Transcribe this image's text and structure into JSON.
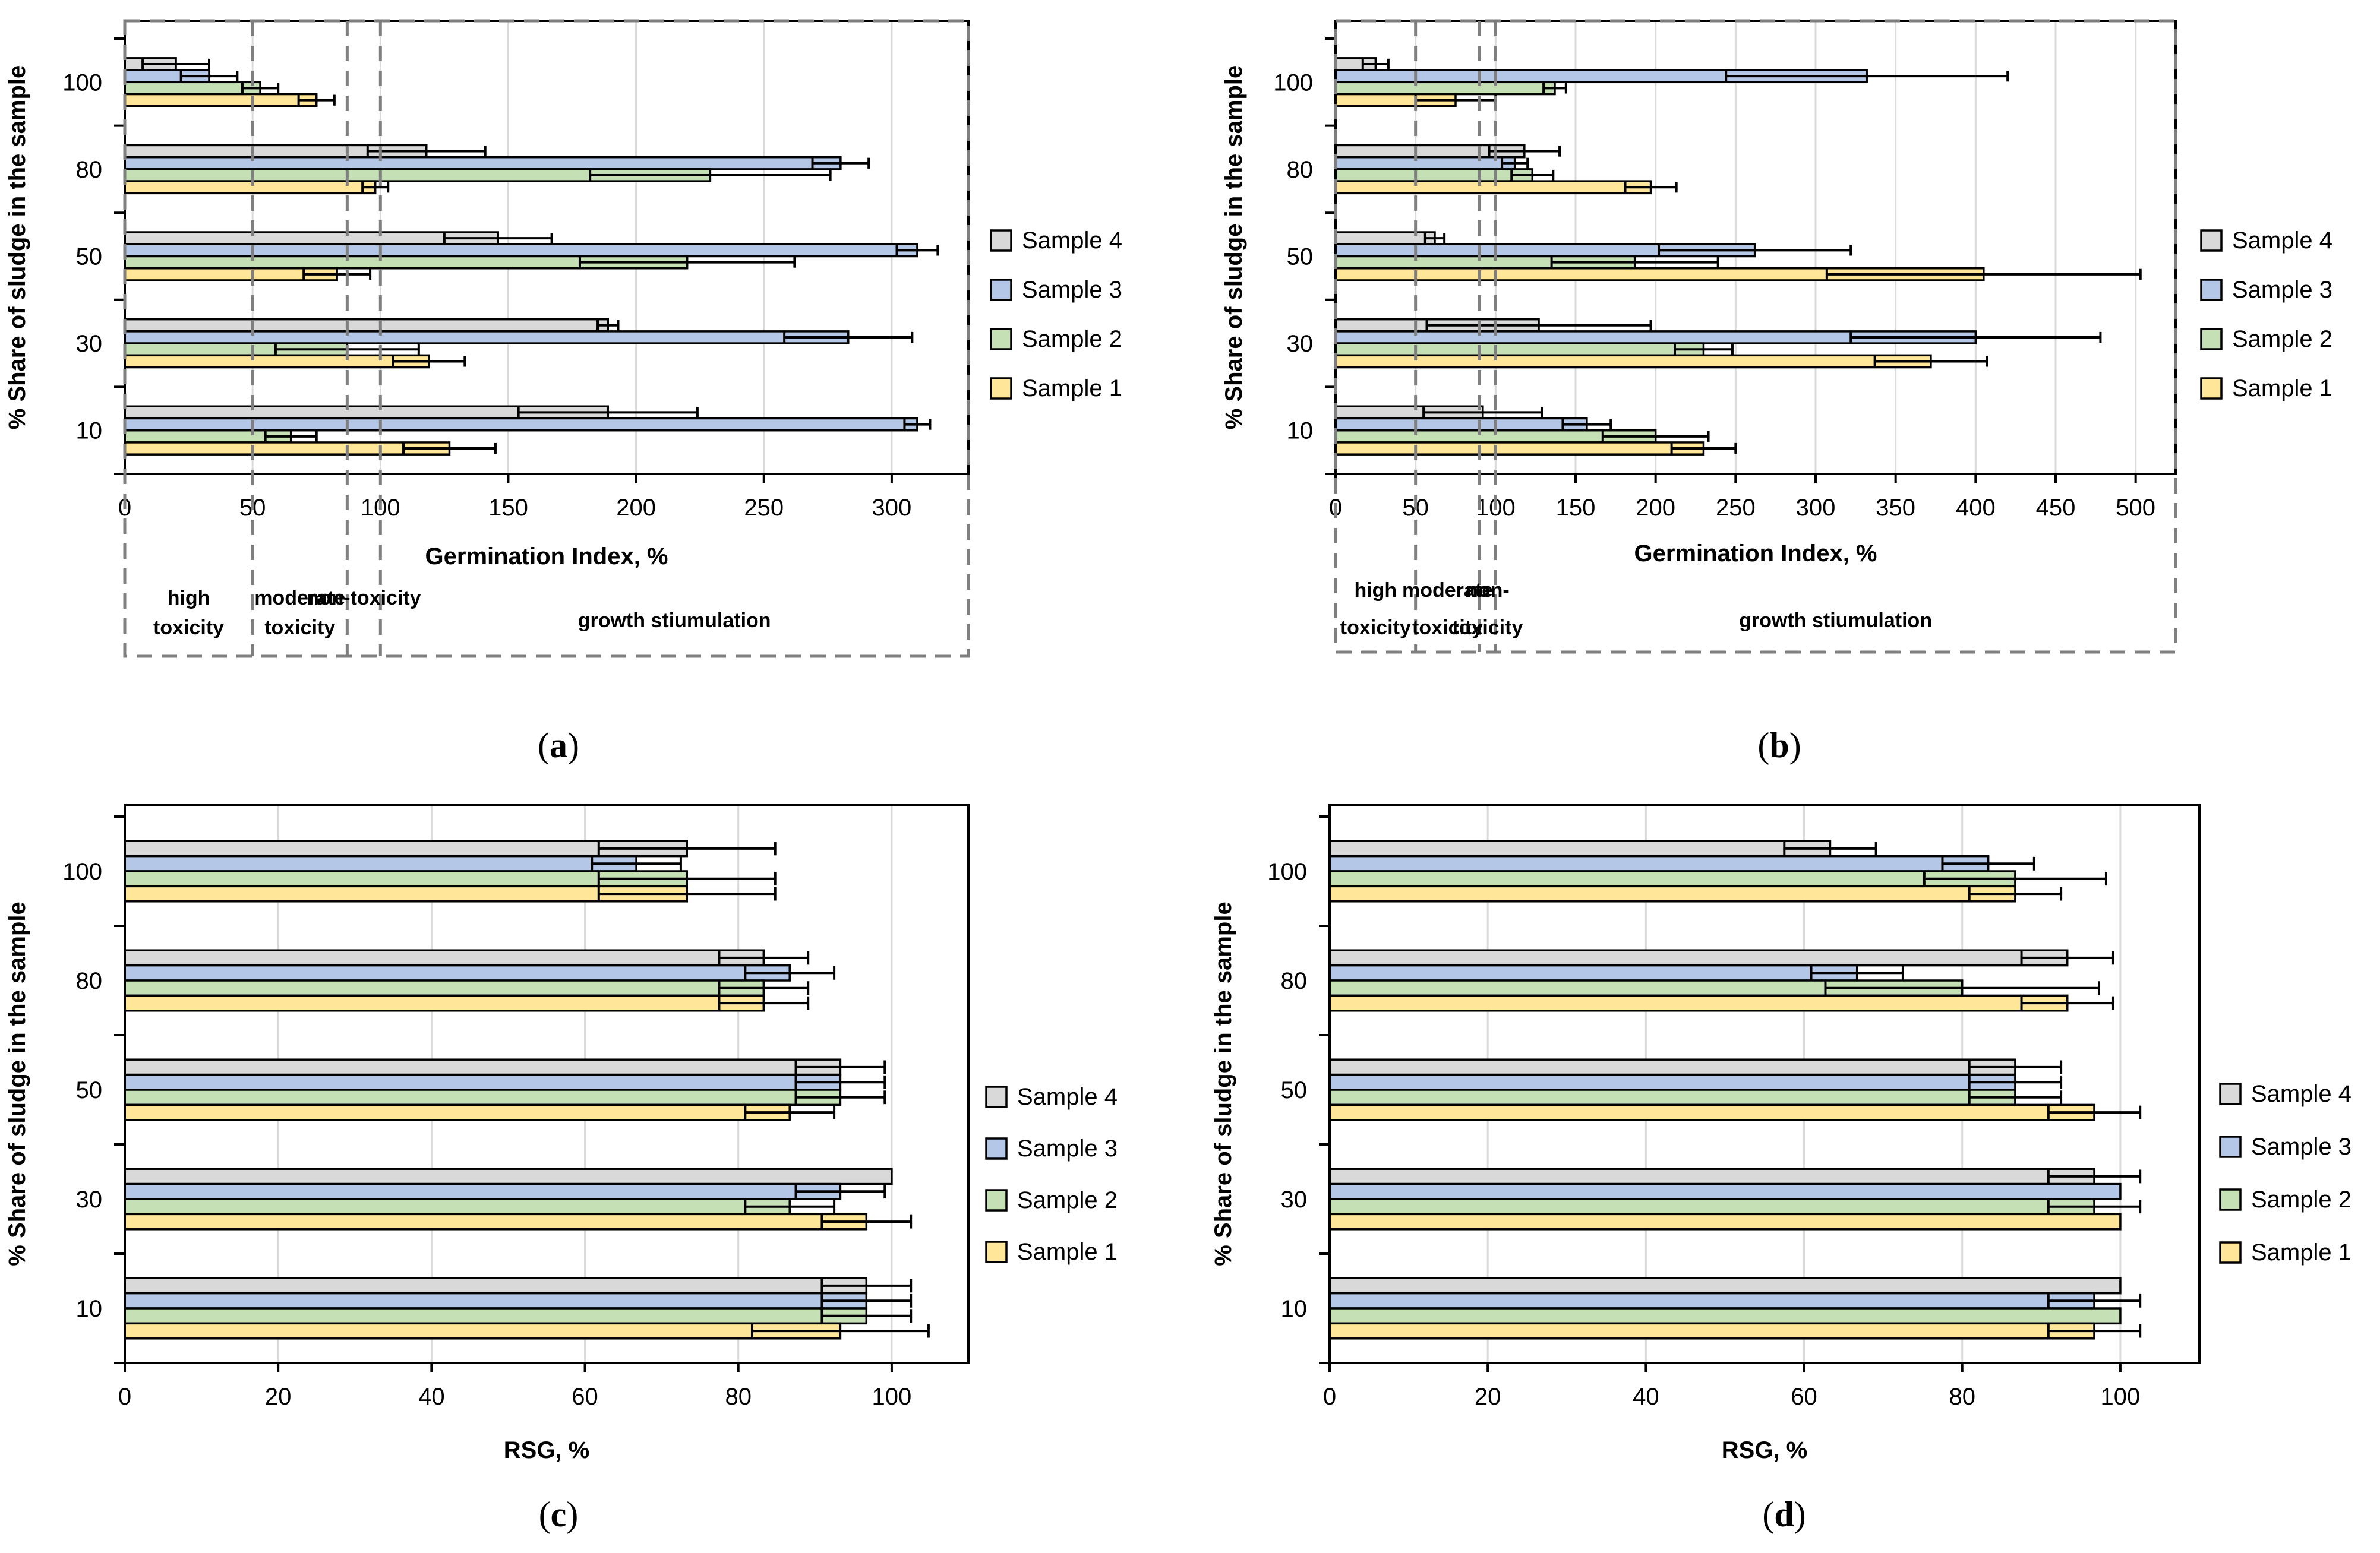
{
  "legend": [
    "Sample 4",
    "Sample 3",
    "Sample 2",
    "Sample 1"
  ],
  "colors": {
    "Sample 1": "#ffe699",
    "Sample 2": "#c5e0b4",
    "Sample 3": "#b4c7e7",
    "Sample 4": "#d9d9d9"
  },
  "chart_data": [
    {
      "panel": "a",
      "type": "bar",
      "orientation": "horizontal",
      "xlabel": "Germination Index, %",
      "ylabel": "% Share of sludge in the sample",
      "categories": [
        "10",
        "30",
        "50",
        "80",
        "100"
      ],
      "xlim": [
        0,
        330
      ],
      "xticks": [
        0,
        50,
        100,
        150,
        200,
        250,
        300
      ],
      "zone_bounds": [
        0,
        50,
        87,
        100,
        330
      ],
      "zones": [
        "high toxicity",
        "moderate toxicity",
        "non-toxicity",
        "growth stiumulation"
      ],
      "series": [
        {
          "name": "Sample 1",
          "values": [
            127,
            119,
            83,
            98,
            75
          ],
          "errors": [
            18,
            14,
            13,
            5,
            7
          ]
        },
        {
          "name": "Sample 2",
          "values": [
            65,
            87,
            220,
            229,
            53
          ],
          "errors": [
            10,
            28,
            42,
            47,
            7
          ]
        },
        {
          "name": "Sample 3",
          "values": [
            310,
            283,
            310,
            280,
            33
          ],
          "errors": [
            5,
            25,
            8,
            11,
            11
          ]
        },
        {
          "name": "Sample 4",
          "values": [
            189,
            189,
            146,
            118,
            20
          ],
          "errors": [
            35,
            4,
            21,
            23,
            13
          ]
        }
      ]
    },
    {
      "panel": "b",
      "type": "bar",
      "orientation": "horizontal",
      "xlabel": "Germination Index, %",
      "ylabel": "% Share of sludge in the sample",
      "categories": [
        "10",
        "30",
        "50",
        "80",
        "100"
      ],
      "xlim": [
        0,
        525
      ],
      "xticks": [
        0,
        50,
        100,
        150,
        200,
        250,
        300,
        350,
        400,
        450,
        500
      ],
      "zone_bounds": [
        0,
        50,
        90,
        100,
        525
      ],
      "zones": [
        "high toxicity",
        "moderate toxicity",
        "non- toxicity",
        "growth stiumulation"
      ],
      "series": [
        {
          "name": "Sample 1",
          "values": [
            230,
            372,
            405,
            197,
            75
          ],
          "errors": [
            20,
            35,
            98,
            16,
            25
          ]
        },
        {
          "name": "Sample 2",
          "values": [
            200,
            230,
            187,
            123,
            137
          ],
          "errors": [
            33,
            18,
            52,
            13,
            7
          ]
        },
        {
          "name": "Sample 3",
          "values": [
            157,
            400,
            262,
            112,
            332
          ],
          "errors": [
            15,
            78,
            60,
            8,
            88
          ]
        },
        {
          "name": "Sample 4",
          "values": [
            92,
            127,
            62,
            118,
            25
          ],
          "errors": [
            37,
            70,
            6,
            22,
            8
          ]
        }
      ]
    },
    {
      "panel": "c",
      "type": "bar",
      "orientation": "horizontal",
      "xlabel": "RSG, %",
      "ylabel": "% Share of sludge in the sample",
      "categories": [
        "10",
        "30",
        "50",
        "80",
        "100"
      ],
      "xlim": [
        0,
        110
      ],
      "xticks": [
        0,
        20,
        40,
        60,
        80,
        100
      ],
      "series": [
        {
          "name": "Sample 1",
          "values": [
            93.3,
            96.7,
            86.7,
            83.3,
            73.3
          ],
          "errors": [
            11.5,
            5.8,
            5.8,
            5.8,
            11.5
          ]
        },
        {
          "name": "Sample 2",
          "values": [
            96.7,
            86.7,
            93.3,
            83.3,
            73.3
          ],
          "errors": [
            5.8,
            5.8,
            5.8,
            5.8,
            11.5
          ]
        },
        {
          "name": "Sample 3",
          "values": [
            96.7,
            93.3,
            93.3,
            86.7,
            66.7
          ],
          "errors": [
            5.8,
            5.8,
            5.8,
            5.8,
            5.8
          ]
        },
        {
          "name": "Sample 4",
          "values": [
            96.7,
            100,
            93.3,
            83.3,
            73.3
          ],
          "errors": [
            5.8,
            0,
            5.8,
            5.8,
            11.5
          ]
        }
      ]
    },
    {
      "panel": "d",
      "type": "bar",
      "orientation": "horizontal",
      "xlabel": "RSG, %",
      "ylabel": "% Share of sludge in the sample",
      "categories": [
        "10",
        "30",
        "50",
        "80",
        "100"
      ],
      "xlim": [
        0,
        110
      ],
      "xticks": [
        0,
        20,
        40,
        60,
        80,
        100
      ],
      "series": [
        {
          "name": "Sample 1",
          "values": [
            96.7,
            100,
            96.7,
            93.3,
            86.7
          ],
          "errors": [
            5.8,
            0,
            5.8,
            5.8,
            5.8
          ]
        },
        {
          "name": "Sample 2",
          "values": [
            100,
            96.7,
            86.7,
            80,
            86.7
          ],
          "errors": [
            0,
            5.8,
            5.8,
            17.3,
            11.5
          ]
        },
        {
          "name": "Sample 3",
          "values": [
            96.7,
            100,
            86.7,
            66.7,
            83.3
          ],
          "errors": [
            5.8,
            0,
            5.8,
            5.8,
            5.8
          ]
        },
        {
          "name": "Sample 4",
          "values": [
            100,
            96.7,
            86.7,
            93.3,
            63.3
          ],
          "errors": [
            0,
            5.8,
            5.8,
            5.8,
            5.8
          ]
        }
      ]
    }
  ]
}
